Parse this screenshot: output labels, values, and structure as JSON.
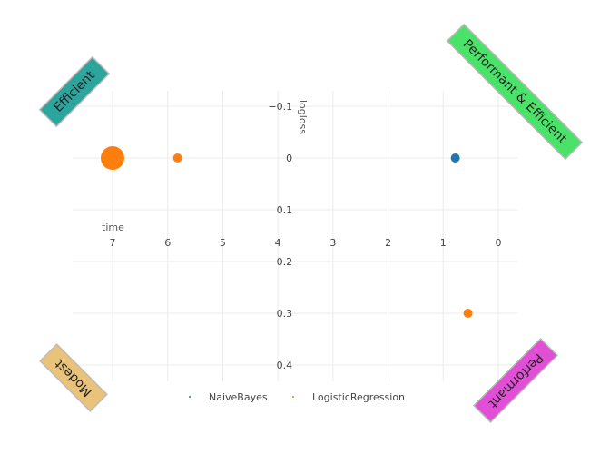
{
  "chart_data": {
    "type": "scatter",
    "xlabel": "time",
    "ylabel": "logloss",
    "x_reversed": true,
    "y_reversed": true,
    "xlim": [
      7.6,
      -0.35
    ],
    "ylim": [
      -0.15,
      0.43
    ],
    "x_ticks": [
      7,
      6,
      5,
      4,
      3,
      2,
      1,
      0
    ],
    "x_tick_labels": [
      "7",
      "6",
      "5",
      "4",
      "3",
      "2",
      "1",
      "0"
    ],
    "y_ticks": [
      -0.1,
      0,
      0.1,
      0.2,
      0.3,
      0.4
    ],
    "y_tick_labels": [
      "−0.1",
      "0",
      "0.1",
      "0.2",
      "0.3",
      "0.4"
    ],
    "grid": true,
    "legend_position": "bottom",
    "series": [
      {
        "name": "NaiveBayes",
        "color": "#1f77b4",
        "points": [
          {
            "x": 0.78,
            "y": 0.0,
            "size": "small"
          }
        ]
      },
      {
        "name": "LogisticRegression",
        "color": "#ff7f0e",
        "points": [
          {
            "x": 7.0,
            "y": 0.0,
            "size": "large"
          },
          {
            "x": 5.82,
            "y": 0.0,
            "size": "small"
          },
          {
            "x": 0.55,
            "y": 0.3,
            "size": "small"
          }
        ]
      }
    ],
    "corner_labels": [
      {
        "text": "Efficient",
        "position": "top-left",
        "color": "#2ca59d"
      },
      {
        "text": "Performant & Efficient",
        "position": "top-right",
        "color": "#4ae36a"
      },
      {
        "text": "Modest",
        "position": "bottom-left",
        "color": "#e9c37a"
      },
      {
        "text": "Performant",
        "position": "bottom-right",
        "color": "#e14fd6"
      }
    ]
  }
}
